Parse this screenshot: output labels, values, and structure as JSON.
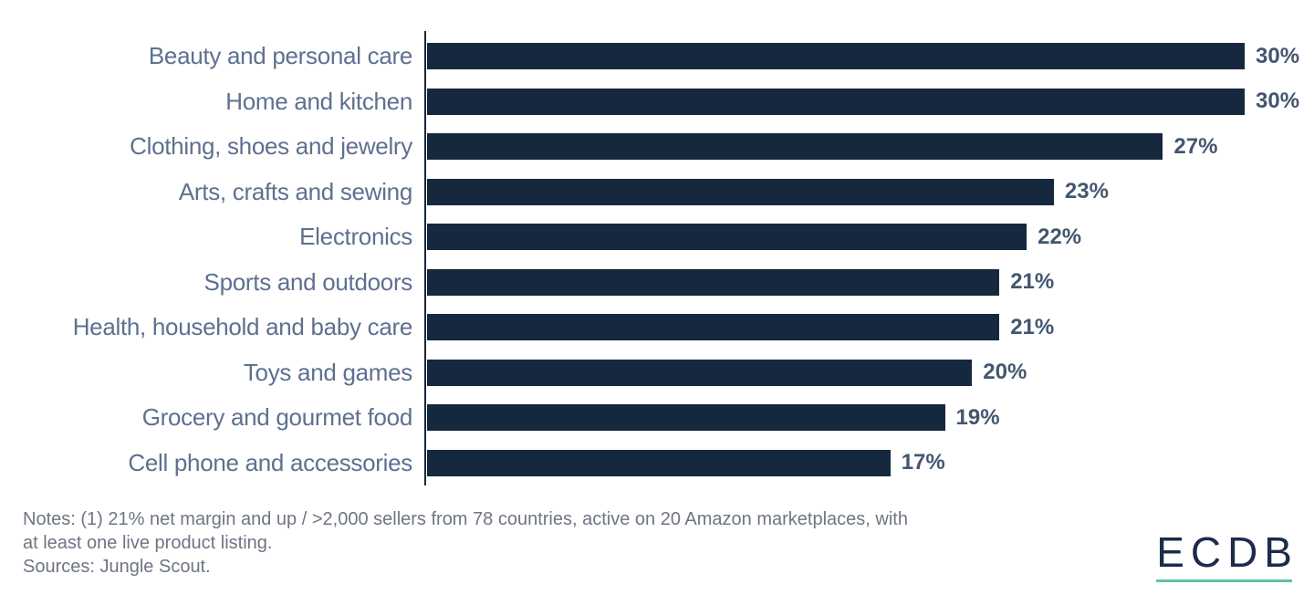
{
  "chart_data": {
    "type": "bar",
    "orientation": "horizontal",
    "categories": [
      "Beauty and personal care",
      "Home and kitchen",
      "Clothing, shoes and jewelry",
      "Arts, crafts and sewing",
      "Electronics",
      "Sports and outdoors",
      "Health, household and baby care",
      "Toys and games",
      "Grocery and gourmet food",
      "Cell phone and accessories"
    ],
    "values": [
      30,
      30,
      27,
      23,
      22,
      21,
      21,
      20,
      19,
      17
    ],
    "value_suffix": "%",
    "title": "",
    "xlabel": "",
    "ylabel": "",
    "xlim": [
      0,
      30
    ],
    "grid": false,
    "legend": false,
    "bar_color": "#16283E",
    "category_label_color": "#5E7090",
    "value_label_color": "#44566F"
  },
  "notes": {
    "line1": "Notes: (1) 21% net margin and up / >2,000 sellers from 78 countries, active on 20 Amazon marketplaces, with",
    "line2": "at least one live product listing.",
    "sources": "Sources: Jungle Scout."
  },
  "branding": {
    "logo_text": "ECDB",
    "logo_text_color": "#1B2B4A",
    "logo_underline_color": "#5FC3A8"
  }
}
